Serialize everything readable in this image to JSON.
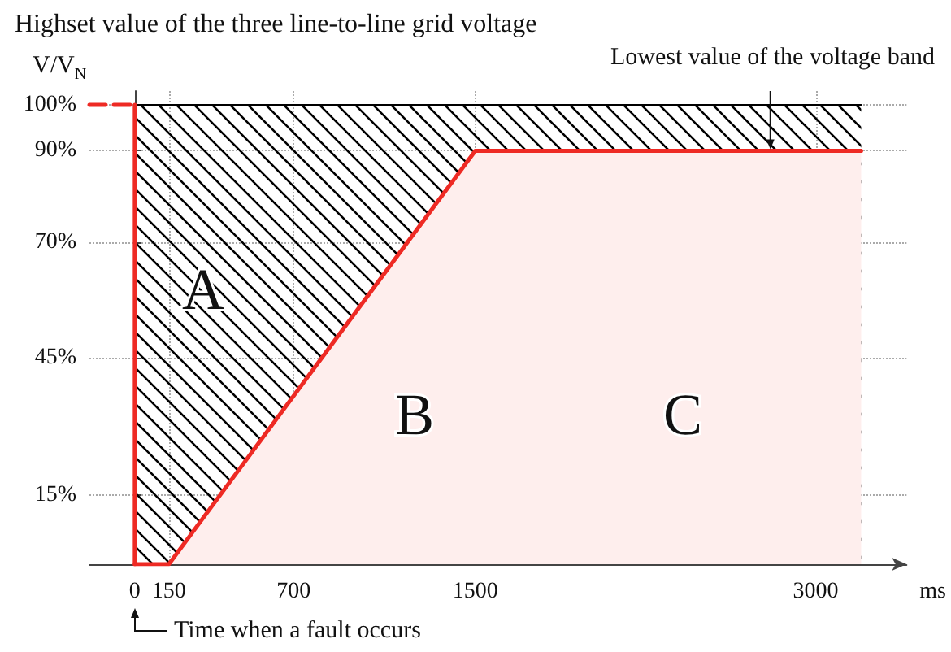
{
  "chart_data": {
    "type": "line",
    "title": "Highset value of the three line-to-line grid voltage",
    "ylabel": "V/V$_{N}$",
    "xlabel": "ms",
    "series": [
      {
        "type": "area",
        "color": "#000000",
        "x": [
          0,
          3200
        ],
        "values": [
          100,
          100
        ]
      },
      {
        "type": "area",
        "color": "#ee2a24",
        "x": [
          0,
          150,
          1500,
          3200
        ],
        "values": [
          0,
          0,
          90,
          90
        ]
      },
      {
        "type": "line",
        "color": "#ee2a24",
        "x": [
          0,
          0
        ],
        "values": [
          100,
          0
        ]
      },
      {
        "color": "#ee2a24",
        "line_style": "dashed",
        "x": [
          -200,
          0
        ],
        "values": [
          100,
          100
        ]
      }
    ],
    "xlim": [
      -200,
      3400
    ],
    "xticks": [
      0,
      150,
      700,
      1500,
      3000
    ],
    "ylim": [
      0,
      103
    ],
    "yticks": [
      {
        "value": 15,
        "label": "15%"
      },
      {
        "value": 45,
        "label": "45%"
      },
      {
        "value": 70,
        "label": "70%"
      },
      {
        "value": 90,
        "label": "90%"
      },
      {
        "value": 100,
        "label": "100%"
      }
    ],
    "grid": true,
    "annotations": [
      {
        "text": "Lowest value of the voltage band",
        "x": 2800,
        "y": 90
      },
      "Time when a fault occurs",
      "A",
      "B",
      "C"
    ]
  }
}
